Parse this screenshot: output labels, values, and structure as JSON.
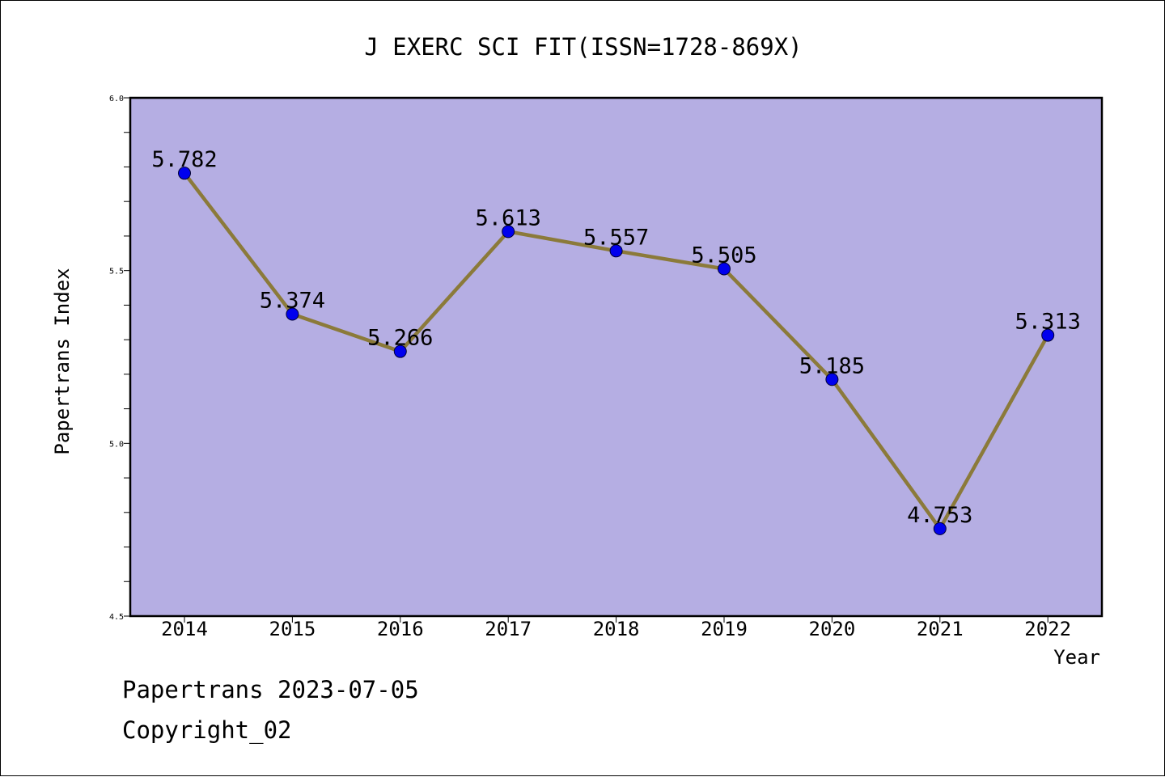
{
  "chart_data": {
    "type": "line",
    "title": "J EXERC SCI FIT(ISSN=1728-869X)",
    "xlabel": "Year",
    "ylabel": "Papertrans Index",
    "categories": [
      "2014",
      "2015",
      "2016",
      "2017",
      "2018",
      "2019",
      "2020",
      "2021",
      "2022"
    ],
    "series": [
      {
        "values": [
          5.782,
          5.374,
          5.266,
          5.613,
          5.557,
          5.505,
          5.185,
          4.753,
          5.313
        ],
        "labels": [
          "5.782",
          "5.374",
          "5.266",
          "5.613",
          "5.557",
          "5.505",
          "5.185",
          "4.753",
          "5.313"
        ]
      }
    ],
    "ylim": [
      4.5,
      6.0
    ],
    "yticks": [
      "4.5",
      "5.0",
      "5.5",
      "6.0"
    ],
    "grid": false,
    "colors": {
      "plot_background": "#b5aee3",
      "line": "#8b7a3a",
      "marker": "#0000ee"
    }
  },
  "footer": {
    "line1": "Papertrans 2023-07-05",
    "line2": "Copyright_02"
  }
}
